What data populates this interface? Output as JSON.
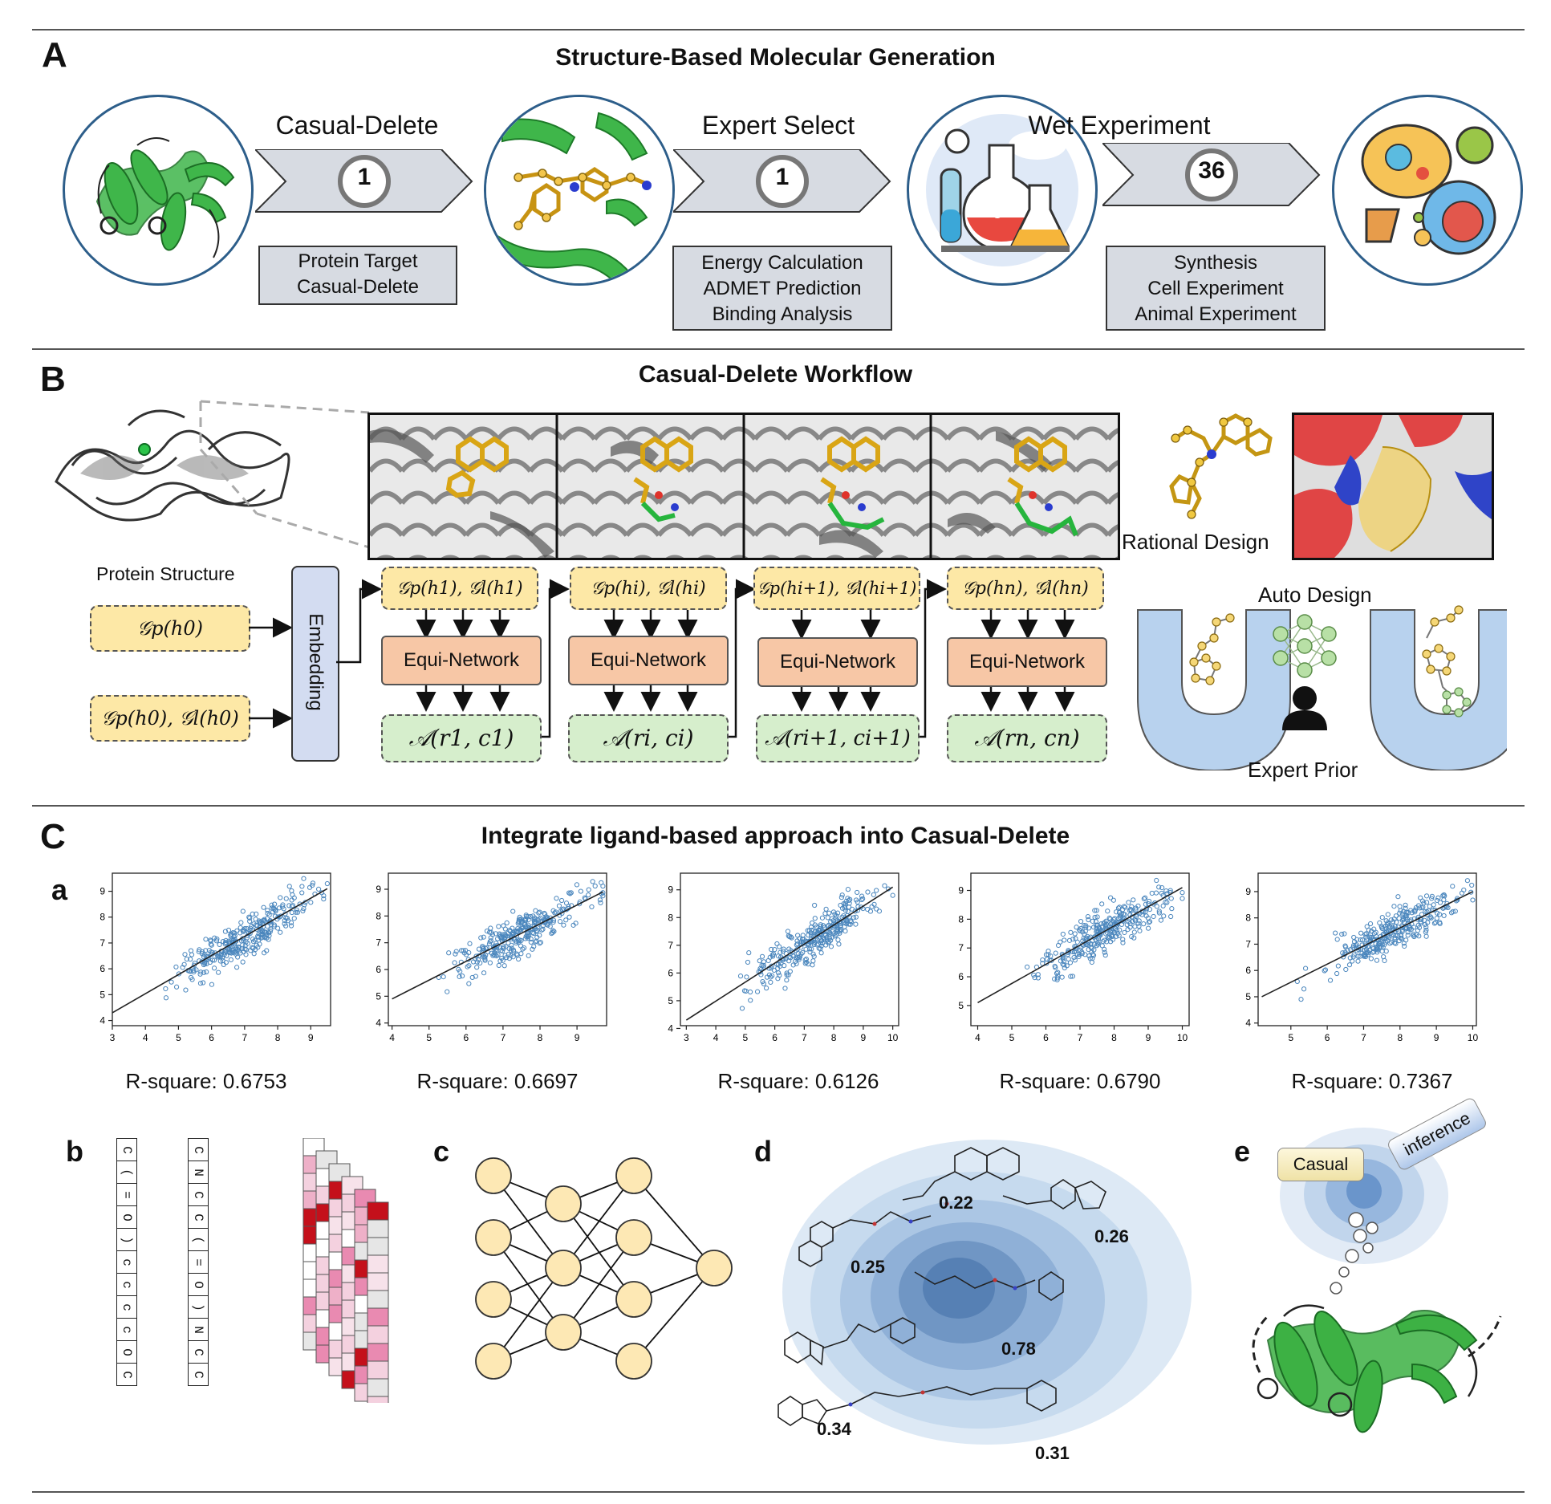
{
  "panelA": {
    "letter": "A",
    "title": "Structure-Based Molecular Generation",
    "steps": [
      {
        "label": "Casual-Delete",
        "count": "1",
        "box": [
          "Protein Target",
          "Casual-Delete"
        ]
      },
      {
        "label": "Expert Select",
        "count": "1",
        "box": [
          "Energy Calculation",
          "ADMET Prediction",
          "Binding Analysis"
        ]
      },
      {
        "label": "Wet Experiment",
        "count": "36",
        "box": [
          "Synthesis",
          "Cell Experiment",
          "Animal Experiment"
        ]
      }
    ]
  },
  "panelB": {
    "letter": "B",
    "title": "Casual-Delete Workflow",
    "protein_structure_label": "Protein Structure",
    "input1": "𝒢p(h0)",
    "input2": "𝒢p(h0), 𝒢l(h0)",
    "embedding_label": "Embedding",
    "network_label": "Equi-Network",
    "states": [
      "𝒢p(h1), 𝒢l(h1)",
      "𝒢p(hi), 𝒢l(hi)",
      "𝒢p(hi+1), 𝒢l(hi+1)",
      "𝒢p(hn), 𝒢l(hn)"
    ],
    "actions": [
      "𝒜(r1, c1)",
      "𝒜(ri, ci)",
      "𝒜(ri+1, ci+1)",
      "𝒜(rn, cn)"
    ],
    "rational_design": "Rational Design",
    "auto_design": "Auto Design",
    "expert_prior": "Expert Prior"
  },
  "panelC": {
    "letter": "C",
    "title": "Integrate ligand-based approach into Casual-Delete",
    "sub_a": "a",
    "sub_b": "b",
    "sub_c": "c",
    "sub_d": "d",
    "sub_e": "e",
    "seq1": [
      "C",
      "(",
      "=",
      "O",
      ")",
      "c",
      "c",
      "c",
      "c",
      "O",
      "C"
    ],
    "seq2": [
      "C",
      "N",
      "C",
      "C",
      "(",
      "=",
      "O",
      ")",
      "N",
      "C",
      "C"
    ],
    "similarity_scores": [
      "0.22",
      "0.26",
      "0.25",
      "0.78",
      "0.34",
      "0.31"
    ],
    "casual_label": "Casual",
    "inference_label": "inference"
  },
  "chart_data": [
    {
      "type": "scatter",
      "title": "",
      "r_square_label": "R-square: 0.6753",
      "xlim": [
        3,
        9.6
      ],
      "ylim": [
        3.8,
        9.7
      ],
      "xticks": [
        3,
        4,
        5,
        6,
        7,
        8,
        9
      ],
      "yticks": [
        4,
        5,
        6,
        7,
        8,
        9
      ],
      "fit_line": [
        [
          3,
          4.3
        ],
        [
          9.5,
          9.1
        ]
      ]
    },
    {
      "type": "scatter",
      "title": "",
      "r_square_label": "R-square: 0.6697",
      "xlim": [
        3.9,
        9.8
      ],
      "ylim": [
        3.9,
        9.6
      ],
      "xticks": [
        4,
        5,
        6,
        7,
        8,
        9
      ],
      "yticks": [
        4,
        5,
        6,
        7,
        8,
        9
      ],
      "fit_line": [
        [
          4,
          4.9
        ],
        [
          9.7,
          8.9
        ]
      ]
    },
    {
      "type": "scatter",
      "title": "",
      "r_square_label": "R-square: 0.6126",
      "xlim": [
        2.8,
        10.2
      ],
      "ylim": [
        4.1,
        9.6
      ],
      "xticks": [
        3,
        4,
        5,
        6,
        7,
        8,
        9,
        10
      ],
      "yticks": [
        4,
        5,
        6,
        7,
        8,
        9
      ],
      "fit_line": [
        [
          3,
          4.3
        ],
        [
          10,
          9.1
        ]
      ]
    },
    {
      "type": "scatter",
      "title": "",
      "r_square_label": "R-square: 0.6790",
      "xlim": [
        3.8,
        10.2
      ],
      "ylim": [
        4.3,
        9.6
      ],
      "xticks": [
        4,
        5,
        6,
        7,
        8,
        9,
        10
      ],
      "yticks": [
        5,
        6,
        7,
        8,
        9
      ],
      "fit_line": [
        [
          4,
          5.1
        ],
        [
          10,
          9.1
        ]
      ]
    },
    {
      "type": "scatter",
      "title": "",
      "r_square_label": "R-square: 0.7367",
      "xlim": [
        4.1,
        10.1
      ],
      "ylim": [
        3.9,
        9.7
      ],
      "xticks": [
        5,
        6,
        7,
        8,
        9,
        10
      ],
      "yticks": [
        4,
        5,
        6,
        7,
        8,
        9
      ],
      "fit_line": [
        [
          4.2,
          5.0
        ],
        [
          10,
          9.0
        ]
      ]
    }
  ]
}
